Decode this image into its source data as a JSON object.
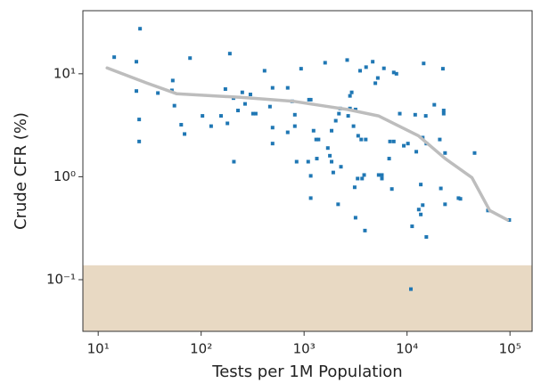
{
  "chart_data": {
    "type": "scatter",
    "xlabel": "Tests per 1M Population",
    "ylabel": "Crude CFR (%)",
    "log_x": true,
    "log_y": true,
    "xlim": [
      7.1,
      164000
    ],
    "ylim": [
      0.0315,
      41
    ],
    "xticks": [
      {
        "value": 10,
        "label": "10¹"
      },
      {
        "value": 100,
        "label": "10²"
      },
      {
        "value": 1000,
        "label": "10³"
      },
      {
        "value": 10000,
        "label": "10⁴"
      },
      {
        "value": 100000,
        "label": "10⁵"
      }
    ],
    "yticks": [
      {
        "value": 0.1,
        "label": "10⁻¹"
      },
      {
        "value": 1,
        "label": "10⁰"
      },
      {
        "value": 10,
        "label": "10¹"
      }
    ],
    "shaded_below": 0.138,
    "band_color": "#e8d9c3",
    "point_color": "#1f77b4",
    "trend_color": "#bdbdbd",
    "points": {
      "x": [
        14.3,
        25.5,
        23.5,
        23.5,
        25,
        25,
        38,
        53,
        52,
        55,
        64,
        69,
        78,
        103,
        125,
        156,
        172,
        190,
        180,
        206,
        208,
        228,
        251,
        267,
        301,
        319,
        339,
        413,
        466,
        494,
        494,
        494,
        693,
        693,
        766,
        813,
        813,
        935,
        846,
        1096,
        1117,
        1160,
        1160,
        1160,
        1236,
        1310,
        1380,
        1330,
        1600,
        1700,
        1780,
        1850,
        1920,
        1850,
        2030,
        2140,
        2180,
        2240,
        2280,
        2620,
        2680,
        2790,
        2790,
        2900,
        3020,
        3100,
        3160,
        3160,
        3310,
        3350,
        3500,
        3590,
        3660,
        3900,
        3970,
        3830,
        4000,
        4640,
        4920,
        5200,
        5300,
        5700,
        5700,
        5960,
        6830,
        6700,
        7430,
        7890,
        7120,
        7430,
        8500,
        9300,
        10200,
        10900,
        11200,
        12300,
        12000,
        13000,
        13600,
        13600,
        14200,
        14200,
        14500,
        15400,
        15400,
        15200,
        18400,
        20800,
        21300,
        22300,
        22700,
        22700,
        23400,
        23400,
        31600,
        33000,
        45300,
        61100,
        98400
      ],
      "y": [
        14.5,
        27.4,
        13.1,
        6.8,
        3.6,
        2.2,
        6.5,
        8.6,
        6.9,
        4.9,
        3.2,
        2.6,
        14.2,
        3.9,
        3.1,
        3.9,
        7.1,
        15.7,
        3.3,
        5.8,
        1.4,
        4.4,
        6.6,
        5.1,
        6.3,
        4.1,
        4.1,
        10.7,
        4.8,
        7.3,
        3.0,
        2.1,
        2.7,
        7.3,
        5.4,
        4.0,
        3.1,
        11.2,
        1.4,
        1.4,
        5.6,
        5.6,
        1.02,
        0.62,
        2.8,
        2.3,
        2.3,
        1.5,
        12.8,
        1.9,
        1.6,
        1.4,
        1.1,
        2.8,
        3.5,
        0.54,
        4.1,
        4.6,
        1.25,
        13.6,
        3.9,
        4.6,
        6.1,
        6.6,
        3.1,
        0.79,
        0.4,
        4.5,
        0.96,
        2.5,
        10.7,
        2.3,
        0.96,
        0.3,
        2.3,
        1.04,
        11.6,
        13.1,
        8.1,
        9.1,
        1.04,
        1.04,
        0.96,
        11.3,
        2.2,
        1.5,
        10.3,
        10,
        0.76,
        2.2,
        4.1,
        2.0,
        2.1,
        0.081,
        0.33,
        1.75,
        4.0,
        0.48,
        0.43,
        0.84,
        0.53,
        2.4,
        12.6,
        2.1,
        0.26,
        3.9,
        5.0,
        2.3,
        0.77,
        11.2,
        4.1,
        4.4,
        1.7,
        0.54,
        0.62,
        0.61,
        1.7,
        0.47,
        0.38
      ]
    },
    "trend": {
      "x": [
        12.2,
        29.9,
        57.7,
        242,
        796,
        2630,
        5280,
        12900,
        23500,
        42700,
        63500,
        94700
      ],
      "y": [
        11.4,
        8.1,
        6.4,
        5.9,
        5.4,
        4.5,
        3.9,
        2.5,
        1.5,
        0.98,
        0.47,
        0.38
      ]
    }
  }
}
